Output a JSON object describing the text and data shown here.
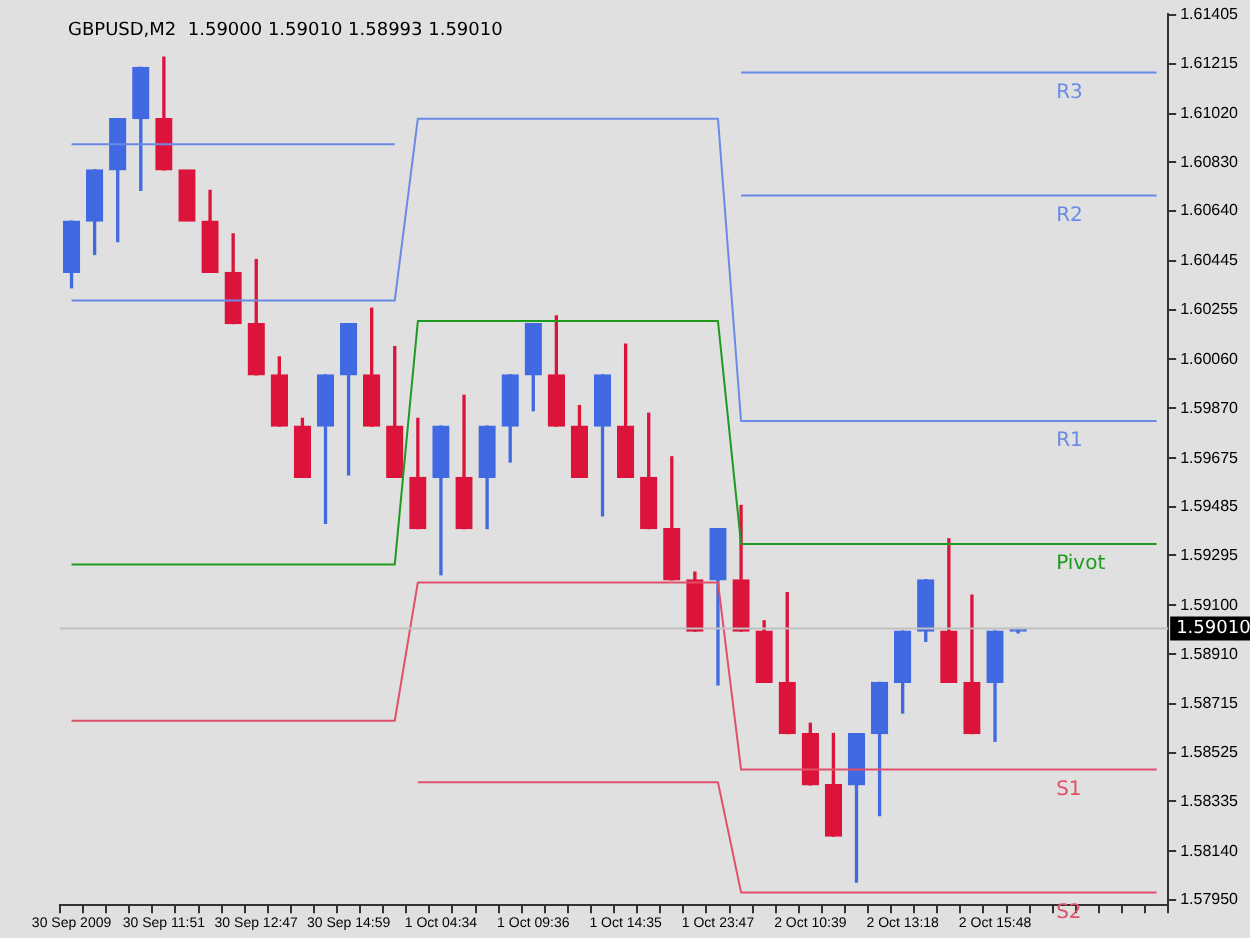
{
  "chart_data": {
    "type": "candlestick",
    "title": "GBPUSD,M2  1.59000 1.59010 1.58993 1.59010",
    "categories": [
      "30 Sep 2009",
      null,
      null,
      null,
      "30 Sep 11:51",
      null,
      null,
      null,
      "30 Sep 12:47",
      null,
      null,
      null,
      "30 Sep 14:59",
      null,
      null,
      null,
      "1 Oct 04:34",
      null,
      null,
      null,
      "1 Oct 09:36",
      null,
      null,
      null,
      "1 Oct 14:35",
      null,
      null,
      null,
      "1 Oct 23:47",
      null,
      null,
      null,
      "2 Oct 10:39",
      null,
      null,
      null,
      "2 Oct 13:18",
      null,
      null,
      null,
      "2 Oct 15:48",
      null,
      null,
      null,
      null,
      null,
      null,
      null
    ],
    "ohlc": [
      [
        1.604,
        1.606,
        1.6034,
        1.606
      ],
      [
        1.606,
        1.608,
        1.6047,
        1.608
      ],
      [
        1.608,
        1.61,
        1.6052,
        1.61
      ],
      [
        1.61,
        1.612,
        1.6072,
        1.612
      ],
      [
        1.61,
        1.6124,
        1.608,
        1.608
      ],
      [
        1.608,
        1.608,
        1.606,
        1.606
      ],
      [
        1.606,
        1.6072,
        1.604,
        1.604
      ],
      [
        1.604,
        1.6055,
        1.602,
        1.602
      ],
      [
        1.602,
        1.6045,
        1.6,
        1.6
      ],
      [
        1.6,
        1.6007,
        1.598,
        1.598
      ],
      [
        1.598,
        1.5983,
        1.596,
        1.596
      ],
      [
        1.598,
        1.6,
        1.5942,
        1.6
      ],
      [
        1.6,
        1.602,
        1.5961,
        1.602
      ],
      [
        1.6,
        1.6026,
        1.598,
        1.598
      ],
      [
        1.598,
        1.6011,
        1.596,
        1.596
      ],
      [
        1.596,
        1.5983,
        1.594,
        1.594
      ],
      [
        1.596,
        1.598,
        1.5922,
        1.598
      ],
      [
        1.596,
        1.5992,
        1.594,
        1.594
      ],
      [
        1.596,
        1.598,
        1.594,
        1.598
      ],
      [
        1.598,
        1.6,
        1.5966,
        1.6
      ],
      [
        1.6,
        1.602,
        1.5986,
        1.602
      ],
      [
        1.6,
        1.6023,
        1.598,
        1.598
      ],
      [
        1.598,
        1.5988,
        1.596,
        1.596
      ],
      [
        1.598,
        1.6,
        1.5945,
        1.6
      ],
      [
        1.598,
        1.6012,
        1.596,
        1.596
      ],
      [
        1.596,
        1.5985,
        1.594,
        1.594
      ],
      [
        1.594,
        1.5968,
        1.592,
        1.592
      ],
      [
        1.592,
        1.5923,
        1.59,
        1.59
      ],
      [
        1.592,
        1.594,
        1.5879,
        1.594
      ],
      [
        1.592,
        1.5949,
        1.59,
        1.59
      ],
      [
        1.59,
        1.5904,
        1.588,
        1.588
      ],
      [
        1.588,
        1.5915,
        1.586,
        1.586
      ],
      [
        1.586,
        1.5864,
        1.584,
        1.584
      ],
      [
        1.584,
        1.586,
        1.582,
        1.582
      ],
      [
        1.584,
        1.586,
        1.5802,
        1.586
      ],
      [
        1.586,
        1.588,
        1.5828,
        1.588
      ],
      [
        1.588,
        1.59,
        1.5868,
        1.59
      ],
      [
        1.59,
        1.592,
        1.5896,
        1.592
      ],
      [
        1.59,
        1.5936,
        1.588,
        1.588
      ],
      [
        1.588,
        1.5914,
        1.586,
        1.586
      ],
      [
        1.588,
        1.59,
        1.5857,
        1.59
      ],
      [
        1.59,
        1.5901,
        1.58993,
        1.5901
      ],
      null,
      null,
      null,
      null,
      null,
      null
    ],
    "colors": [
      "#4169e1",
      "#4169e1",
      "#4169e1",
      "#4169e1",
      "#dc143c",
      "#dc143c",
      "#dc143c",
      "#dc143c",
      "#dc143c",
      "#dc143c",
      "#dc143c",
      "#4169e1",
      "#4169e1",
      "#dc143c",
      "#dc143c",
      "#dc143c",
      "#4169e1",
      "#dc143c",
      "#4169e1",
      "#4169e1",
      "#4169e1",
      "#dc143c",
      "#dc143c",
      "#4169e1",
      "#dc143c",
      "#dc143c",
      "#dc143c",
      "#dc143c",
      "#4169e1",
      "#dc143c",
      "#dc143c",
      "#dc143c",
      "#dc143c",
      "#dc143c",
      "#4169e1",
      "#4169e1",
      "#4169e1",
      "#4169e1",
      "#dc143c",
      "#dc143c",
      "#4169e1",
      "#4169e1",
      null,
      null,
      null,
      null,
      null,
      null
    ],
    "series": [
      {
        "type": "line",
        "name": "R3",
        "color": "#6a8ae6",
        "values": [
          null,
          null,
          null,
          null,
          null,
          null,
          null,
          null,
          null,
          null,
          null,
          null,
          null,
          null,
          null,
          null,
          null,
          null,
          null,
          null,
          null,
          null,
          null,
          null,
          null,
          null,
          null,
          null,
          null,
          1.6118,
          1.6118,
          1.6118,
          1.6118,
          1.6118,
          1.6118,
          1.6118,
          1.6118,
          1.6118,
          1.6118,
          1.6118,
          1.6118,
          1.6118,
          1.6118,
          1.6118,
          1.6118,
          1.6118,
          1.6118,
          1.6118
        ]
      },
      {
        "type": "line",
        "name": "R2",
        "color": "#6a8ae6",
        "values": [
          1.609,
          1.609,
          1.609,
          1.609,
          1.609,
          1.609,
          1.609,
          1.609,
          1.609,
          1.609,
          1.609,
          1.609,
          1.609,
          1.609,
          1.609,
          null,
          null,
          null,
          null,
          null,
          null,
          null,
          null,
          null,
          null,
          null,
          null,
          null,
          null,
          1.607,
          1.607,
          1.607,
          1.607,
          1.607,
          1.607,
          1.607,
          1.607,
          1.607,
          1.607,
          1.607,
          1.607,
          1.607,
          1.607,
          1.607,
          1.607,
          1.607,
          1.607,
          1.607
        ]
      },
      {
        "type": "line",
        "name": "R1",
        "color": "#6a8ae6",
        "values": [
          1.6029,
          1.6029,
          1.6029,
          1.6029,
          1.6029,
          1.6029,
          1.6029,
          1.6029,
          1.6029,
          1.6029,
          1.6029,
          1.6029,
          1.6029,
          1.6029,
          1.6029,
          1.61,
          1.61,
          1.61,
          1.61,
          1.61,
          1.61,
          1.61,
          1.61,
          1.61,
          1.61,
          1.61,
          1.61,
          1.61,
          1.61,
          1.5982,
          1.5982,
          1.5982,
          1.5982,
          1.5982,
          1.5982,
          1.5982,
          1.5982,
          1.5982,
          1.5982,
          1.5982,
          1.5982,
          1.5982,
          1.5982,
          1.5982,
          1.5982,
          1.5982,
          1.5982,
          1.5982
        ]
      },
      {
        "type": "line",
        "name": "Pivot",
        "color": "#1e9a1e",
        "values": [
          1.5926,
          1.5926,
          1.5926,
          1.5926,
          1.5926,
          1.5926,
          1.5926,
          1.5926,
          1.5926,
          1.5926,
          1.5926,
          1.5926,
          1.5926,
          1.5926,
          1.5926,
          1.6021,
          1.6021,
          1.6021,
          1.6021,
          1.6021,
          1.6021,
          1.6021,
          1.6021,
          1.6021,
          1.6021,
          1.6021,
          1.6021,
          1.6021,
          1.6021,
          1.5934,
          1.5934,
          1.5934,
          1.5934,
          1.5934,
          1.5934,
          1.5934,
          1.5934,
          1.5934,
          1.5934,
          1.5934,
          1.5934,
          1.5934,
          1.5934,
          1.5934,
          1.5934,
          1.5934,
          1.5934,
          1.5934
        ]
      },
      {
        "type": "line",
        "name": "S1",
        "color": "#e0506a",
        "values": [
          1.5865,
          1.5865,
          1.5865,
          1.5865,
          1.5865,
          1.5865,
          1.5865,
          1.5865,
          1.5865,
          1.5865,
          1.5865,
          1.5865,
          1.5865,
          1.5865,
          1.5865,
          1.5919,
          1.5919,
          1.5919,
          1.5919,
          1.5919,
          1.5919,
          1.5919,
          1.5919,
          1.5919,
          1.5919,
          1.5919,
          1.5919,
          1.5919,
          1.5919,
          1.5846,
          1.5846,
          1.5846,
          1.5846,
          1.5846,
          1.5846,
          1.5846,
          1.5846,
          1.5846,
          1.5846,
          1.5846,
          1.5846,
          1.5846,
          1.5846,
          1.5846,
          1.5846,
          1.5846,
          1.5846,
          1.5846
        ]
      },
      {
        "type": "line",
        "name": "S2",
        "color": "#e0506a",
        "values": [
          null,
          null,
          null,
          null,
          null,
          null,
          null,
          null,
          null,
          null,
          null,
          null,
          null,
          null,
          null,
          1.5841,
          1.5841,
          1.5841,
          1.5841,
          1.5841,
          1.5841,
          1.5841,
          1.5841,
          1.5841,
          1.5841,
          1.5841,
          1.5841,
          1.5841,
          1.5841,
          1.5798,
          1.5798,
          1.5798,
          1.5798,
          1.5798,
          1.5798,
          1.5798,
          1.5798,
          1.5798,
          1.5798,
          1.5798,
          1.5798,
          1.5798,
          1.5798,
          1.5798,
          1.5798,
          1.5798,
          1.5798,
          1.5798
        ]
      }
    ],
    "ylim": [
      1.5793,
      1.6141
    ],
    "yticks": [
      1.61405,
      1.61215,
      {
        "value": 1.6102,
        "label": "1.61020"
      },
      {
        "value": 1.6083,
        "label": "1.60830"
      },
      {
        "value": 1.6064,
        "label": "1.60640"
      },
      1.60445,
      1.60255,
      {
        "value": 1.6006,
        "label": "1.60060"
      },
      {
        "value": 1.5987,
        "label": "1.59870"
      },
      1.59675,
      1.59485,
      1.59295,
      {
        "value": 1.591,
        "label": "1.59100"
      },
      {
        "value": 1.5891,
        "label": "1.58910"
      },
      1.58715,
      1.58525,
      1.58335,
      {
        "value": 1.5814,
        "label": "1.58140"
      },
      {
        "value": 1.5795,
        "label": "1.57950"
      }
    ],
    "ref_lines": [
      {
        "axis": "y",
        "value": 1.5901,
        "label": "1.59010",
        "color": "#c0c0c0"
      }
    ],
    "legend": false
  }
}
